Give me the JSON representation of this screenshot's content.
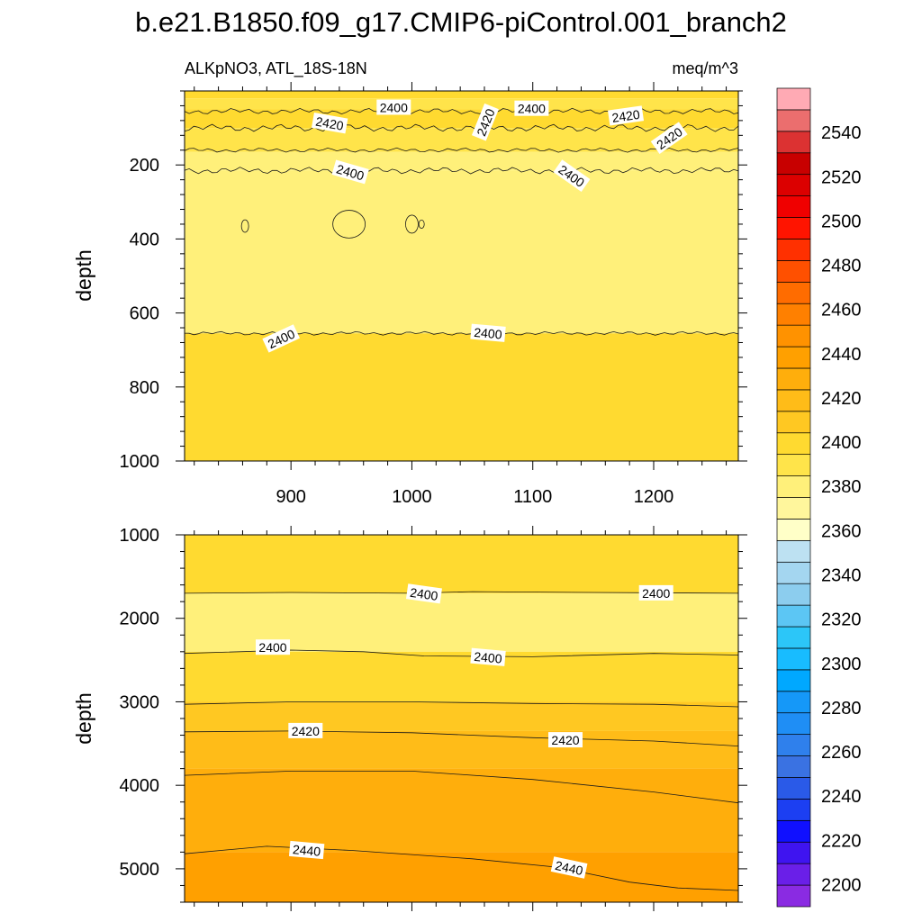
{
  "chart_data": {
    "type": "heatmap",
    "title": "b.e21.B1850.f09_g17.CMIP6-piControl.001_branch2",
    "subtitle_left": "ALKpNO3, ATL_18S-18N",
    "subtitle_right": "meq/m^3",
    "colorbar": {
      "levels": [
        2190,
        2200,
        2210,
        2220,
        2230,
        2240,
        2250,
        2260,
        2270,
        2280,
        2290,
        2300,
        2310,
        2320,
        2330,
        2340,
        2350,
        2360,
        2370,
        2380,
        2390,
        2400,
        2410,
        2420,
        2430,
        2440,
        2450,
        2460,
        2470,
        2480,
        2490,
        2500,
        2510,
        2520,
        2530,
        2540,
        2550,
        2560
      ],
      "colors": [
        "#8a2be2",
        "#6a1fe8",
        "#3f14f0",
        "#1010ff",
        "#1c3ff2",
        "#2a5ae8",
        "#3a72e2",
        "#2f80ec",
        "#1f8ef5",
        "#1598f8",
        "#00a8ff",
        "#18bcff",
        "#2cc6f8",
        "#5cc6f4",
        "#8ccdee",
        "#a4d6f0",
        "#bde1f2",
        "#ffffc8",
        "#fff69c",
        "#fff07a",
        "#ffe44a",
        "#ffda30",
        "#ffc822",
        "#ffbc18",
        "#ffae0c",
        "#ffa000",
        "#ff9200",
        "#ff8000",
        "#ff6c00",
        "#ff5000",
        "#ff3000",
        "#ff1400",
        "#f00000",
        "#dc0000",
        "#c80000",
        "#dc3232",
        "#eb6e6e",
        "#ffaab4"
      ],
      "tick_labels": [
        "2200",
        "2220",
        "2240",
        "2260",
        "2280",
        "2300",
        "2320",
        "2340",
        "2360",
        "2380",
        "2400",
        "2420",
        "2440",
        "2460",
        "2480",
        "2500",
        "2520",
        "2540"
      ],
      "tick_values": [
        2200,
        2220,
        2240,
        2260,
        2280,
        2300,
        2320,
        2340,
        2360,
        2380,
        2400,
        2420,
        2440,
        2460,
        2480,
        2500,
        2520,
        2540
      ]
    },
    "x_axis": {
      "range": [
        812,
        1270
      ],
      "tick_values": [
        900,
        1000,
        1100,
        1200
      ],
      "tick_labels": [
        "900",
        "1000",
        "1100",
        "1200"
      ]
    },
    "panels": [
      {
        "name": "upper",
        "ylabel": "depth",
        "ylim": [
          0,
          1000
        ],
        "y_reversed": true,
        "tick_values": [
          200,
          400,
          600,
          800,
          1000
        ],
        "tick_labels": [
          "200",
          "400",
          "600",
          "800",
          "1000"
        ],
        "bands": [
          {
            "y": [
              0,
              20
            ],
            "color": "#ffda30"
          },
          {
            "y": [
              20,
              50
            ],
            "color": "#ffe44a"
          },
          {
            "y": [
              50,
              100
            ],
            "color": "#ffda30"
          },
          {
            "y": [
              100,
              165
            ],
            "color": "#ffe44a"
          },
          {
            "y": [
              165,
              215
            ],
            "color": "#fff07a"
          },
          {
            "y": [
              215,
              655
            ],
            "color": "#fff07a"
          },
          {
            "y": [
              655,
              1000
            ],
            "color": "#ffda30"
          }
        ],
        "contours": [
          {
            "depth": 55,
            "amp": 8
          },
          {
            "depth": 100,
            "amp": 10
          },
          {
            "depth": 160,
            "amp": 6
          },
          {
            "depth": 215,
            "amp": 9
          },
          {
            "depth": 655,
            "amp": 5
          }
        ],
        "contour_labels": [
          {
            "text": "2400",
            "x": 985,
            "y": 45,
            "angle": 0
          },
          {
            "text": "2420",
            "x": 932,
            "y": 88,
            "angle": 10
          },
          {
            "text": "2420",
            "x": 1061,
            "y": 85,
            "angle": -68
          },
          {
            "text": "2400",
            "x": 1099,
            "y": 48,
            "angle": 0
          },
          {
            "text": "2420",
            "x": 1177,
            "y": 68,
            "angle": -8
          },
          {
            "text": "2420",
            "x": 1213,
            "y": 128,
            "angle": -35
          },
          {
            "text": "2400",
            "x": 949,
            "y": 220,
            "angle": 16
          },
          {
            "text": "2400",
            "x": 1132,
            "y": 230,
            "angle": 35
          },
          {
            "text": "2400",
            "x": 892,
            "y": 670,
            "angle": -25
          },
          {
            "text": "2400",
            "x": 1063,
            "y": 655,
            "angle": 5
          }
        ]
      },
      {
        "name": "lower",
        "ylabel": "depth",
        "ylim": [
          1000,
          5400
        ],
        "y_reversed": true,
        "tick_values": [
          1000,
          2000,
          3000,
          4000,
          5000
        ],
        "tick_labels": [
          "1000",
          "2000",
          "3000",
          "4000",
          "5000"
        ],
        "bands": [
          {
            "y": [
              1000,
              1700
            ],
            "color": "#ffda30"
          },
          {
            "y": [
              1700,
              2400
            ],
            "color": "#fff07a"
          },
          {
            "y": [
              2400,
              3000
            ],
            "color": "#ffda30"
          },
          {
            "y": [
              3000,
              3350
            ],
            "color": "#ffc822"
          },
          {
            "y": [
              3350,
              3800
            ],
            "color": "#ffbc18"
          },
          {
            "y": [
              3800,
              4800
            ],
            "color": "#ffae0c"
          },
          {
            "y": [
              4800,
              5400
            ],
            "color": "#ffa000"
          }
        ],
        "contours": [
          {
            "points": [
              [
                812,
                1700
              ],
              [
                900,
                1690
              ],
              [
                1000,
                1700
              ],
              [
                1050,
                1680
              ],
              [
                1150,
                1690
              ],
              [
                1270,
                1700
              ]
            ]
          },
          {
            "points": [
              [
                812,
                2420
              ],
              [
                900,
                2380
              ],
              [
                960,
                2400
              ],
              [
                1010,
                2450
              ],
              [
                1100,
                2460
              ],
              [
                1200,
                2420
              ],
              [
                1270,
                2440
              ]
            ]
          },
          {
            "points": [
              [
                812,
                3030
              ],
              [
                900,
                3000
              ],
              [
                1000,
                3000
              ],
              [
                1100,
                3020
              ],
              [
                1200,
                3030
              ],
              [
                1270,
                3060
              ]
            ]
          },
          {
            "points": [
              [
                812,
                3360
              ],
              [
                900,
                3350
              ],
              [
                1000,
                3370
              ],
              [
                1100,
                3430
              ],
              [
                1200,
                3470
              ],
              [
                1270,
                3530
              ]
            ]
          },
          {
            "points": [
              [
                812,
                3880
              ],
              [
                900,
                3830
              ],
              [
                1000,
                3830
              ],
              [
                1100,
                3930
              ],
              [
                1200,
                4080
              ],
              [
                1270,
                4210
              ]
            ]
          },
          {
            "points": [
              [
                812,
                4820
              ],
              [
                880,
                4730
              ],
              [
                950,
                4780
              ],
              [
                1050,
                4880
              ],
              [
                1120,
                4980
              ],
              [
                1180,
                5160
              ],
              [
                1220,
                5230
              ],
              [
                1270,
                5260
              ]
            ]
          }
        ],
        "contour_labels": [
          {
            "text": "2400",
            "x": 1010,
            "y": 1710,
            "angle": 8
          },
          {
            "text": "2400",
            "x": 1202,
            "y": 1700,
            "angle": 0
          },
          {
            "text": "2400",
            "x": 885,
            "y": 2350,
            "angle": 0
          },
          {
            "text": "2400",
            "x": 1063,
            "y": 2470,
            "angle": 5
          },
          {
            "text": "2420",
            "x": 912,
            "y": 3350,
            "angle": 0
          },
          {
            "text": "2420",
            "x": 1127,
            "y": 3460,
            "angle": 0
          },
          {
            "text": "2440",
            "x": 913,
            "y": 4780,
            "angle": 5
          },
          {
            "text": "2440",
            "x": 1130,
            "y": 4990,
            "angle": 12
          }
        ]
      }
    ]
  }
}
